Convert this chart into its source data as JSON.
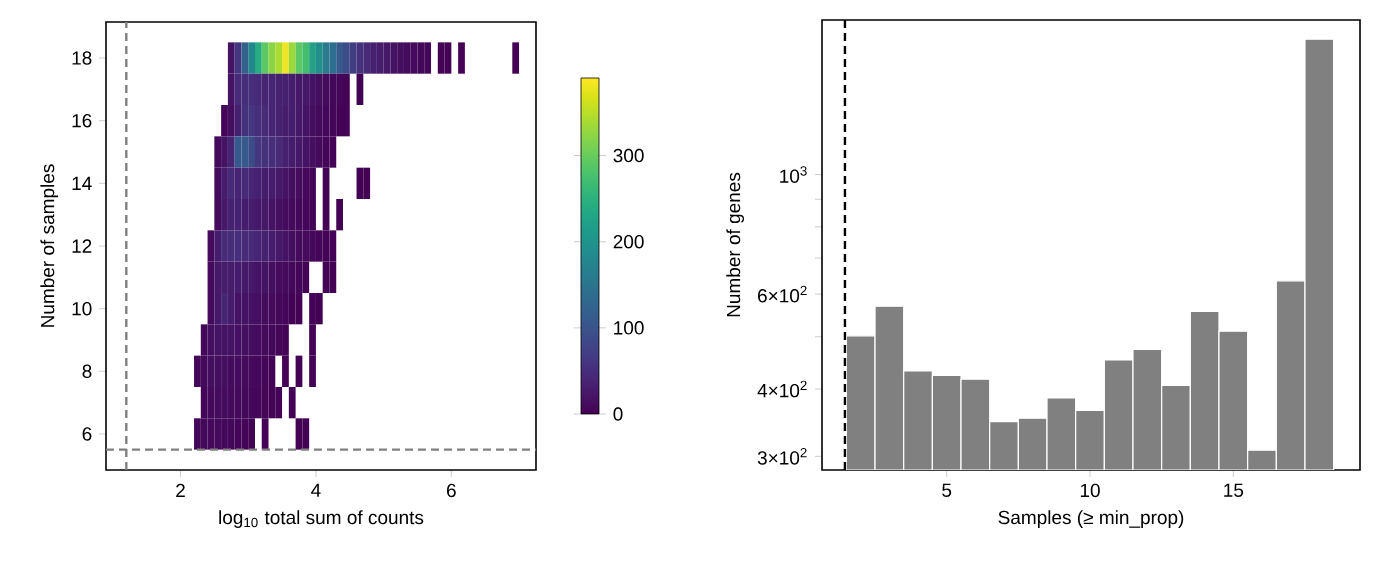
{
  "chart_data": [
    {
      "type": "heatmap",
      "xlabel": "log$_{10}$ total sum of counts",
      "ylabel": "Number of samples",
      "x": [
        2.25,
        2.35,
        2.45,
        2.55,
        2.65,
        2.75,
        2.85,
        2.95,
        3.05,
        3.15,
        3.25,
        3.35,
        3.45,
        3.55,
        3.65,
        3.75,
        3.85,
        3.95,
        4.05,
        4.15,
        4.25,
        4.35,
        4.45,
        4.55,
        4.65,
        4.75,
        4.85,
        4.95,
        5.05,
        5.15,
        5.25,
        5.35,
        5.45,
        5.55,
        5.65,
        5.75,
        5.85,
        5.95,
        6.05,
        6.15,
        6.25,
        6.35,
        6.45,
        6.55,
        6.65,
        6.75,
        6.85,
        6.95
      ],
      "y": [
        18,
        17,
        16,
        15,
        14,
        13,
        12,
        11,
        10,
        9,
        8,
        7,
        6
      ],
      "cells": [
        [
          null,
          null,
          null,
          null,
          null,
          20,
          60,
          120,
          180,
          240,
          290,
          320,
          340,
          380,
          330,
          290,
          270,
          220,
          190,
          160,
          140,
          110,
          90,
          70,
          55,
          45,
          35,
          30,
          25,
          20,
          15,
          12,
          10,
          8,
          5,
          null,
          3,
          3,
          null,
          2,
          null,
          null,
          null,
          null,
          null,
          null,
          null,
          1
        ],
        [
          null,
          null,
          null,
          null,
          null,
          20,
          45,
          50,
          50,
          45,
          40,
          40,
          35,
          35,
          30,
          25,
          25,
          20,
          15,
          10,
          8,
          5,
          3,
          null,
          1,
          null,
          null,
          null,
          null,
          null,
          null,
          null,
          null,
          null,
          null,
          null,
          null,
          null,
          null,
          null,
          null,
          null,
          null,
          null,
          null,
          null,
          null,
          null
        ],
        [
          null,
          null,
          null,
          null,
          5,
          15,
          35,
          55,
          60,
          50,
          45,
          40,
          35,
          30,
          30,
          25,
          20,
          15,
          10,
          8,
          5,
          3,
          2,
          null,
          null,
          null,
          null,
          null,
          null,
          null,
          null,
          null,
          null,
          null,
          null,
          null,
          null,
          null,
          null,
          null,
          null,
          null,
          null,
          null,
          null,
          null,
          null,
          null
        ],
        [
          null,
          null,
          null,
          10,
          20,
          40,
          110,
          110,
          90,
          60,
          55,
          50,
          45,
          35,
          30,
          25,
          20,
          15,
          10,
          5,
          2,
          null,
          null,
          null,
          null,
          null,
          null,
          null,
          null,
          null,
          null,
          null,
          null,
          null,
          null,
          null,
          null,
          null,
          null,
          null,
          null,
          null,
          null,
          null,
          null,
          null,
          null,
          null
        ],
        [
          null,
          null,
          null,
          10,
          30,
          45,
          40,
          45,
          40,
          35,
          30,
          30,
          25,
          20,
          15,
          12,
          8,
          4,
          null,
          2,
          null,
          null,
          null,
          null,
          1,
          1,
          null,
          null,
          null,
          null,
          null,
          null,
          null,
          null,
          null,
          null,
          null,
          null,
          null,
          null,
          null,
          null,
          null,
          null,
          null,
          null,
          null,
          null
        ],
        [
          null,
          null,
          null,
          10,
          25,
          35,
          35,
          30,
          30,
          25,
          25,
          20,
          15,
          12,
          10,
          8,
          5,
          3,
          null,
          2,
          null,
          1,
          null,
          null,
          null,
          null,
          null,
          null,
          null,
          null,
          null,
          null,
          null,
          null,
          null,
          null,
          null,
          null,
          null,
          null,
          null,
          null,
          null,
          null,
          null,
          null,
          null,
          null
        ],
        [
          null,
          null,
          10,
          30,
          45,
          50,
          50,
          45,
          45,
          40,
          35,
          30,
          25,
          20,
          15,
          12,
          10,
          8,
          5,
          3,
          2,
          null,
          null,
          null,
          null,
          null,
          null,
          null,
          null,
          null,
          null,
          null,
          null,
          null,
          null,
          null,
          null,
          null,
          null,
          null,
          null,
          null,
          null,
          null,
          null,
          null,
          null,
          null
        ],
        [
          null,
          null,
          10,
          25,
          30,
          30,
          30,
          25,
          25,
          20,
          20,
          15,
          12,
          10,
          8,
          5,
          3,
          null,
          null,
          2,
          1,
          null,
          null,
          null,
          null,
          null,
          null,
          null,
          null,
          null,
          null,
          null,
          null,
          null,
          null,
          null,
          null,
          null,
          null,
          null,
          null,
          null,
          null,
          null,
          null,
          null,
          null,
          null
        ],
        [
          null,
          null,
          10,
          25,
          40,
          30,
          20,
          20,
          18,
          15,
          12,
          10,
          8,
          5,
          3,
          2,
          null,
          2,
          1,
          null,
          null,
          null,
          null,
          null,
          null,
          null,
          null,
          null,
          null,
          null,
          null,
          null,
          null,
          null,
          null,
          null,
          null,
          null,
          null,
          null,
          null,
          null,
          null,
          null,
          null,
          null,
          null,
          null
        ],
        [
          null,
          8,
          15,
          20,
          20,
          20,
          18,
          15,
          15,
          12,
          10,
          8,
          5,
          3,
          null,
          null,
          null,
          1,
          null,
          null,
          null,
          null,
          null,
          null,
          null,
          null,
          null,
          null,
          null,
          null,
          null,
          null,
          null,
          null,
          null,
          null,
          null,
          null,
          null,
          null,
          null,
          null,
          null,
          null,
          null,
          null,
          null,
          null
        ],
        [
          5,
          10,
          15,
          15,
          15,
          12,
          12,
          10,
          10,
          8,
          5,
          3,
          null,
          2,
          null,
          1,
          null,
          1,
          null,
          null,
          null,
          null,
          null,
          null,
          null,
          null,
          null,
          null,
          null,
          null,
          null,
          null,
          null,
          null,
          null,
          null,
          null,
          null,
          null,
          null,
          null,
          null,
          null,
          null,
          null,
          null,
          null,
          null
        ],
        [
          null,
          5,
          10,
          12,
          12,
          10,
          10,
          8,
          8,
          5,
          4,
          3,
          2,
          null,
          1,
          null,
          null,
          null,
          null,
          null,
          null,
          null,
          null,
          null,
          null,
          null,
          null,
          null,
          null,
          null,
          null,
          null,
          null,
          null,
          null,
          null,
          null,
          null,
          null,
          null,
          null,
          null,
          null,
          null,
          null,
          null,
          null,
          null
        ],
        [
          5,
          8,
          10,
          10,
          8,
          8,
          6,
          5,
          3,
          null,
          2,
          null,
          null,
          null,
          null,
          1,
          1,
          null,
          null,
          null,
          null,
          null,
          null,
          null,
          null,
          null,
          null,
          null,
          null,
          null,
          null,
          null,
          null,
          null,
          null,
          null,
          null,
          null,
          null,
          null,
          null,
          null,
          null,
          null,
          null,
          null,
          null,
          null
        ]
      ],
      "clim": [
        0,
        390
      ],
      "cticks": [
        0,
        100,
        200,
        300
      ],
      "xlim": [
        0.9,
        7.25
      ],
      "ylim": [
        4.85,
        19.15
      ],
      "xticks": [
        2,
        4,
        6
      ],
      "yticks": [
        6,
        8,
        10,
        12,
        14,
        16,
        18
      ],
      "ref_lines": [
        {
          "axis": "x",
          "value": 1.2,
          "color": "#808080",
          "line_style": "dashed"
        },
        {
          "axis": "y",
          "value": 5.5,
          "color": "#808080",
          "line_style": "dashed"
        }
      ]
    },
    {
      "type": "histogram",
      "xlabel": "Samples (≥ min_prop)",
      "ylabel": "Number of genes",
      "bins": [
        1.5,
        2.5,
        3.5,
        4.5,
        5.5,
        6.5,
        7.5,
        8.5,
        9.5,
        10.5,
        11.5,
        12.5,
        13.5,
        14.5,
        15.5,
        16.5,
        17.5,
        18.5
      ],
      "values": [
        502,
        570,
        432,
        424,
        417,
        348,
        353,
        385,
        365,
        453,
        474,
        406,
        557,
        512,
        308,
        635,
        1783
      ],
      "color": "#808080",
      "log": "y",
      "xlim": [
        0.65,
        19.42
      ],
      "ylim": [
        283,
        1936
      ],
      "xticks": [
        5,
        10,
        15
      ],
      "yticks": [
        {
          "value": 300,
          "label": "3×10$^{2}$"
        },
        {
          "value": 400,
          "label": "4×10$^{2}$"
        },
        {
          "value": 500,
          "label": null
        },
        {
          "value": 600,
          "label": "6×10$^{2}$"
        },
        {
          "value": 700,
          "label": null
        },
        {
          "value": 800,
          "label": null
        },
        {
          "value": 900,
          "label": null
        },
        {
          "value": 1000,
          "label": "10$^{3}$"
        }
      ],
      "ref_lines": [
        {
          "axis": "x",
          "value": 1.45,
          "color": "#000000",
          "line_style": "dashed"
        }
      ]
    }
  ]
}
